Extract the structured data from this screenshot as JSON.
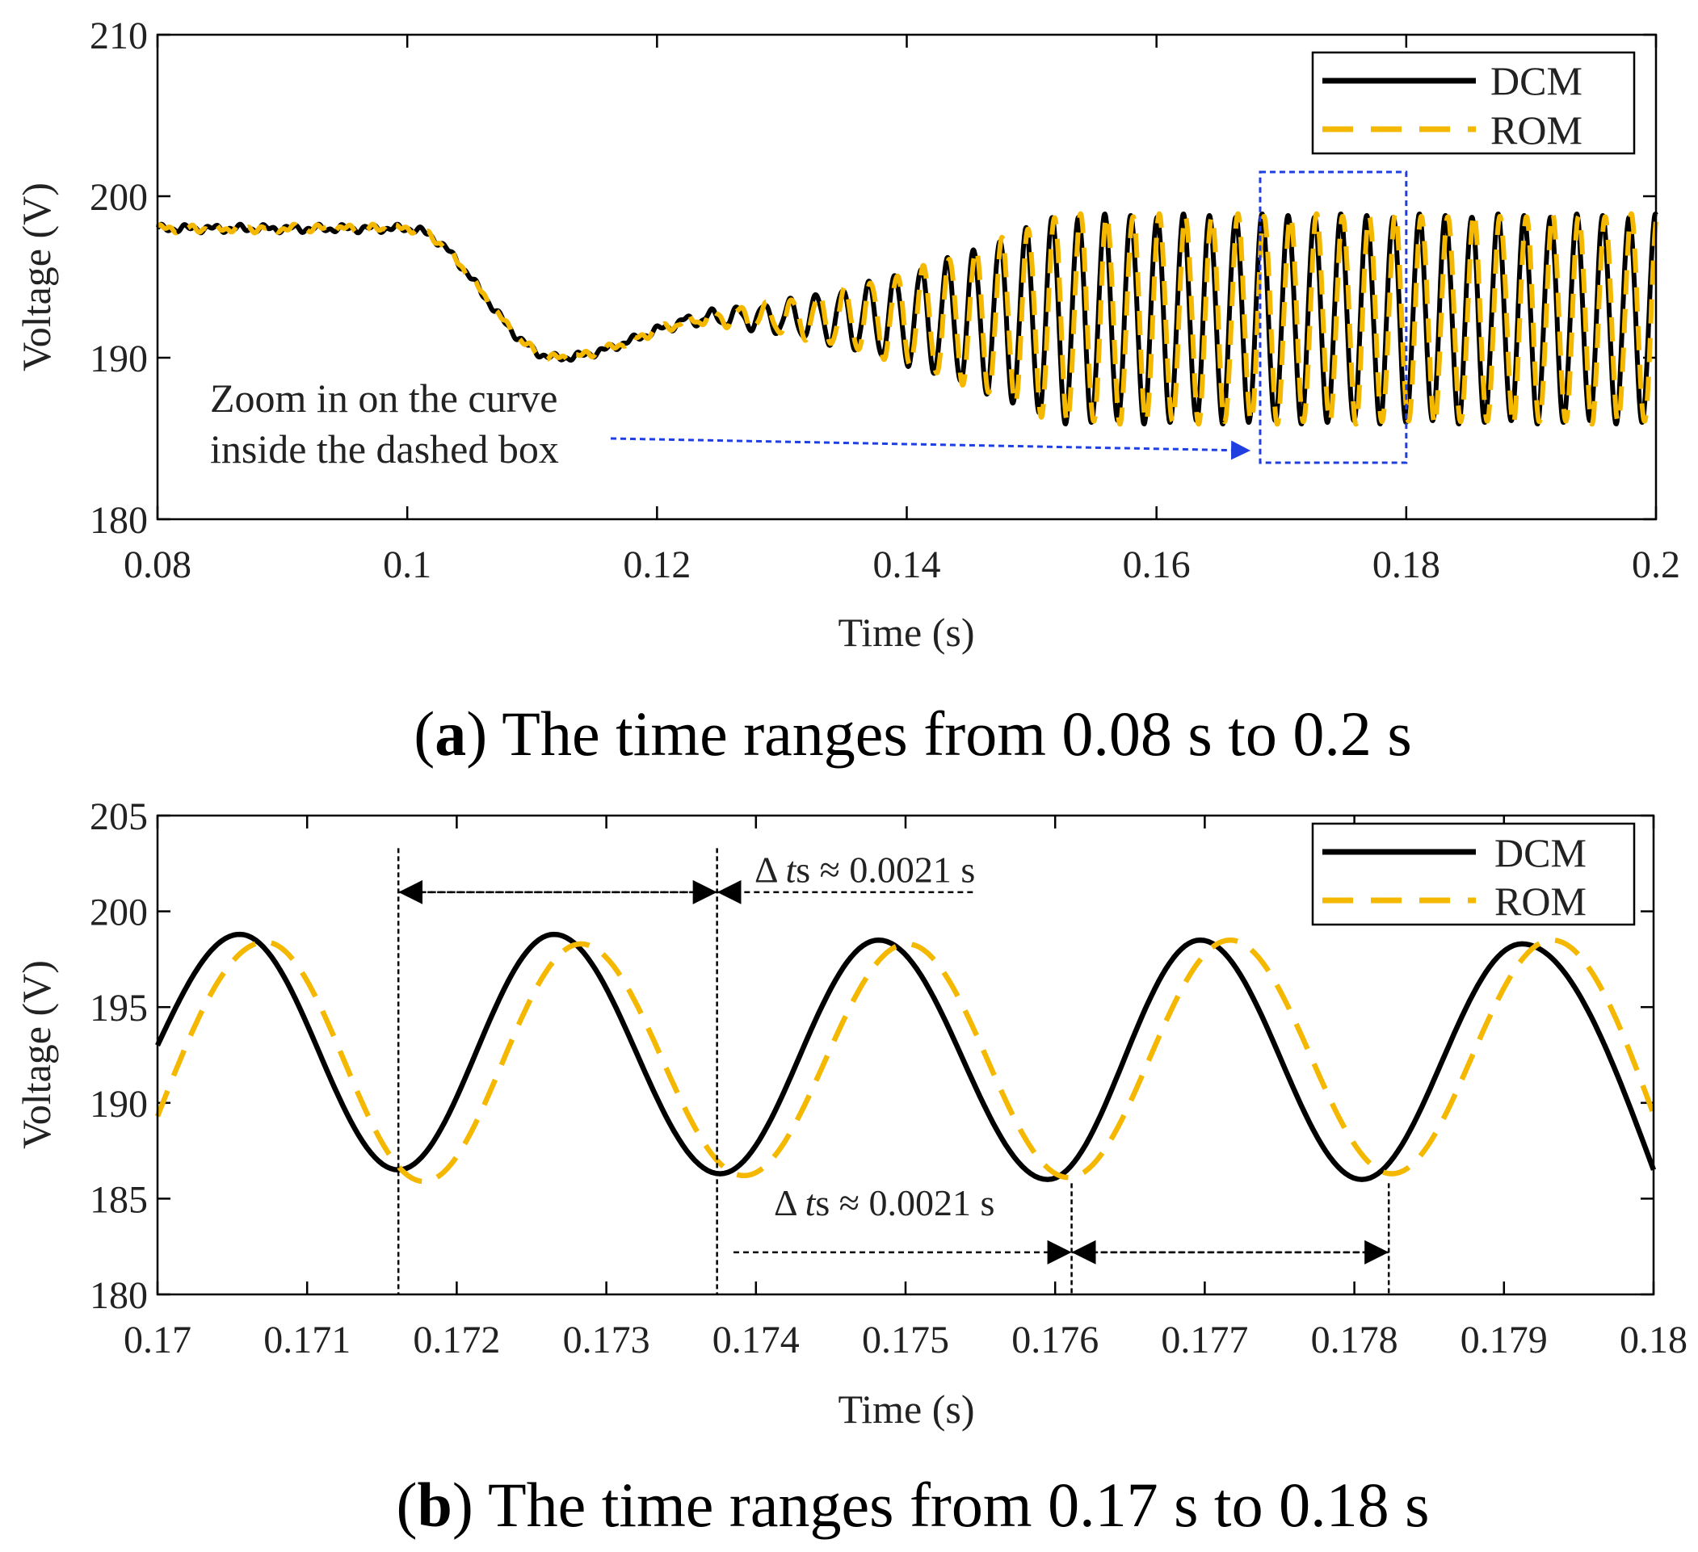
{
  "chart_data": [
    {
      "type": "line",
      "panel": "a",
      "caption_letter": "a",
      "caption_text": "The time ranges from 0.08 s to 0.2 s",
      "xlabel": "Time (s)",
      "ylabel": "Voltage (V)",
      "xlim": [
        0.08,
        0.2
      ],
      "ylim": [
        180,
        210
      ],
      "xticks": [
        0.08,
        0.1,
        0.12,
        0.14,
        0.16,
        0.18,
        0.2
      ],
      "xtick_labels": [
        "0.08",
        "0.1",
        "0.12",
        "0.14",
        "0.16",
        "0.18",
        "0.2"
      ],
      "yticks": [
        180,
        190,
        200,
        210
      ],
      "ytick_labels": [
        "180",
        "190",
        "200",
        "210"
      ],
      "legend": [
        "DCM",
        "ROM"
      ],
      "legend_position": "top-right",
      "series": [
        {
          "name": "DCM",
          "style": "solid",
          "color": "#000000",
          "description": "steady at 198 V until 0.1 s, dips to about 190 V near 0.112 s, recovers to ~192 V, then grows into oscillation of about 186-199 V with period ~0.0021 s"
        },
        {
          "name": "ROM",
          "style": "dashed",
          "color": "#F5B800",
          "description": "tracks DCM; oscillation of about 186-199 V with a slight phase lag"
        }
      ],
      "key_points": {
        "steady_before": 198,
        "dip_min_time": 0.112,
        "dip_min_value": 190,
        "osc_period": 0.0021,
        "osc_max": 198.8,
        "osc_min": 186
      },
      "zoom_box": {
        "x": [
          0.1683,
          0.18
        ],
        "y": [
          183.5,
          201.5
        ]
      },
      "annotation": [
        "Zoom in on the curve",
        "inside the dashed box"
      ]
    },
    {
      "type": "line",
      "panel": "b",
      "caption_letter": "b",
      "caption_text": "The time ranges from 0.17 s to 0.18 s",
      "xlabel": "Time (s)",
      "ylabel": "Voltage (V)",
      "xlim": [
        0.17,
        0.18
      ],
      "ylim": [
        180,
        205
      ],
      "xticks": [
        0.17,
        0.171,
        0.172,
        0.173,
        0.174,
        0.175,
        0.176,
        0.177,
        0.178,
        0.179,
        0.18
      ],
      "xtick_labels": [
        "0.17",
        "0.171",
        "0.172",
        "0.173",
        "0.174",
        "0.175",
        "0.176",
        "0.177",
        "0.178",
        "0.179",
        "0.18"
      ],
      "yticks": [
        180,
        185,
        190,
        195,
        200,
        205
      ],
      "ytick_labels": [
        "180",
        "185",
        "190",
        "195",
        "200",
        "205"
      ],
      "legend": [
        "DCM",
        "ROM"
      ],
      "legend_position": "top-right",
      "series": [
        {
          "name": "DCM",
          "style": "solid",
          "color": "#000000",
          "peaks": [
            [
              0.17055,
              198.8
            ],
            [
              0.17265,
              198.8
            ],
            [
              0.17482,
              198.5
            ],
            [
              0.17697,
              198.5
            ],
            [
              0.17912,
              198.3
            ]
          ],
          "troughs": [
            [
              0.17161,
              186.5
            ],
            [
              0.17376,
              186.3
            ],
            [
              0.17595,
              186.0
            ],
            [
              0.17805,
              186.0
            ]
          ],
          "start": [
            0.17,
            193.0
          ],
          "end": [
            0.18,
            186.5
          ]
        },
        {
          "name": "ROM",
          "style": "dashed",
          "color": "#F5B800",
          "peaks": [
            [
              0.17072,
              198.4
            ],
            [
              0.17283,
              198.3
            ],
            [
              0.17501,
              198.3
            ],
            [
              0.17717,
              198.5
            ],
            [
              0.17932,
              198.5
            ]
          ],
          "troughs": [
            [
              0.17178,
              185.9
            ],
            [
              0.17392,
              186.2
            ],
            [
              0.17609,
              186.1
            ],
            [
              0.17825,
              186.3
            ]
          ],
          "start": [
            0.17,
            189.3
          ],
          "end": [
            0.18,
            189.4
          ]
        }
      ],
      "markers": [
        0.17161,
        0.17374,
        0.17611,
        0.17823
      ],
      "period_arrow_y": [
        201.0,
        182.2
      ],
      "period_label_y": [
        202.2,
        184.8
      ],
      "period_label_prefix": "Δ",
      "period_label_italic": "t",
      "period_label_suffix": "s ≈ 0.0021 s"
    }
  ]
}
